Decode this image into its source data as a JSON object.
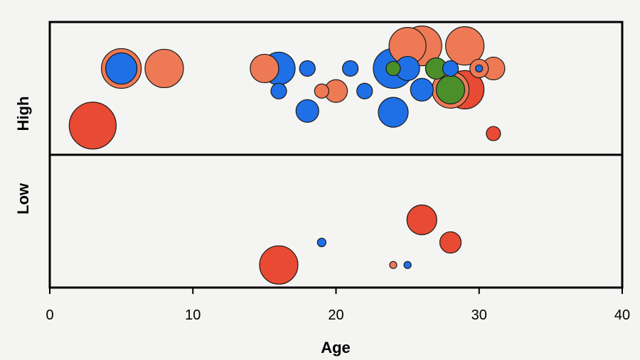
{
  "chart_data": {
    "type": "scatter",
    "title": "",
    "xlabel": "Age",
    "ylabel": "",
    "xlim": [
      0,
      40
    ],
    "x_ticks": [
      0,
      10,
      20,
      30,
      40
    ],
    "x_tick_labels": [
      "0",
      "10",
      "20",
      "30",
      "40"
    ],
    "bands": [
      "High",
      "Low"
    ],
    "grid": false,
    "legend": "none",
    "colors": {
      "red": "#e84a33",
      "orange": "#ee7a55",
      "blue": "#1f6fe6",
      "green": "#4a8f2a"
    },
    "points": [
      {
        "band": "High",
        "x": 3,
        "level": 0.22,
        "size": 33,
        "color": "red"
      },
      {
        "band": "High",
        "x": 5,
        "level": 0.65,
        "size": 28,
        "color": "orange"
      },
      {
        "band": "High",
        "x": 5,
        "level": 0.65,
        "size": 22,
        "color": "blue"
      },
      {
        "band": "High",
        "x": 8,
        "level": 0.65,
        "size": 27,
        "color": "orange"
      },
      {
        "band": "High",
        "x": 15,
        "level": 0.65,
        "size": 20,
        "color": "orange"
      },
      {
        "band": "High",
        "x": 16,
        "level": 0.65,
        "size": 23,
        "color": "blue"
      },
      {
        "band": "High",
        "x": 16,
        "level": 0.48,
        "size": 11,
        "color": "blue"
      },
      {
        "band": "High",
        "x": 18,
        "level": 0.65,
        "size": 11,
        "color": "blue"
      },
      {
        "band": "High",
        "x": 18,
        "level": 0.33,
        "size": 16,
        "color": "blue"
      },
      {
        "band": "High",
        "x": 19,
        "level": 0.48,
        "size": 10,
        "color": "orange"
      },
      {
        "band": "High",
        "x": 20,
        "level": 0.48,
        "size": 16,
        "color": "orange"
      },
      {
        "band": "High",
        "x": 21,
        "level": 0.65,
        "size": 11,
        "color": "blue"
      },
      {
        "band": "High",
        "x": 22,
        "level": 0.48,
        "size": 11,
        "color": "blue"
      },
      {
        "band": "High",
        "x": 24,
        "level": 0.65,
        "size": 28,
        "color": "blue"
      },
      {
        "band": "High",
        "x": 24,
        "level": 0.65,
        "size": 10,
        "color": "green"
      },
      {
        "band": "High",
        "x": 24,
        "level": 0.32,
        "size": 21,
        "color": "blue"
      },
      {
        "band": "High",
        "x": 25,
        "level": 0.82,
        "size": 26,
        "color": "orange"
      },
      {
        "band": "High",
        "x": 25,
        "level": 0.65,
        "size": 17,
        "color": "blue"
      },
      {
        "band": "High",
        "x": 26,
        "level": 0.82,
        "size": 28,
        "color": "orange"
      },
      {
        "band": "High",
        "x": 26,
        "level": 0.49,
        "size": 16,
        "color": "blue"
      },
      {
        "band": "High",
        "x": 27,
        "level": 0.65,
        "size": 15,
        "color": "green"
      },
      {
        "band": "High",
        "x": 28,
        "level": 0.65,
        "size": 11,
        "color": "blue"
      },
      {
        "band": "High",
        "x": 28,
        "level": 0.49,
        "size": 26,
        "color": "orange"
      },
      {
        "band": "High",
        "x": 28,
        "level": 0.49,
        "size": 20,
        "color": "green"
      },
      {
        "band": "High",
        "x": 29,
        "level": 0.82,
        "size": 27,
        "color": "orange"
      },
      {
        "band": "High",
        "x": 29,
        "level": 0.49,
        "size": 27,
        "color": "red"
      },
      {
        "band": "High",
        "x": 30,
        "level": 0.65,
        "size": 13,
        "color": "orange"
      },
      {
        "band": "High",
        "x": 30,
        "level": 0.65,
        "size": 5,
        "color": "blue"
      },
      {
        "band": "High",
        "x": 31,
        "level": 0.65,
        "size": 16,
        "color": "orange"
      },
      {
        "band": "High",
        "x": 31,
        "level": 0.16,
        "size": 10,
        "color": "red"
      },
      {
        "band": "Low",
        "x": 16,
        "level": 0.17,
        "size": 27,
        "color": "red"
      },
      {
        "band": "Low",
        "x": 19,
        "level": 0.34,
        "size": 6,
        "color": "blue"
      },
      {
        "band": "Low",
        "x": 24,
        "level": 0.17,
        "size": 5,
        "color": "orange"
      },
      {
        "band": "Low",
        "x": 25,
        "level": 0.17,
        "size": 5,
        "color": "blue"
      },
      {
        "band": "Low",
        "x": 26,
        "level": 0.51,
        "size": 21,
        "color": "red"
      },
      {
        "band": "Low",
        "x": 28,
        "level": 0.34,
        "size": 15,
        "color": "red"
      }
    ]
  }
}
